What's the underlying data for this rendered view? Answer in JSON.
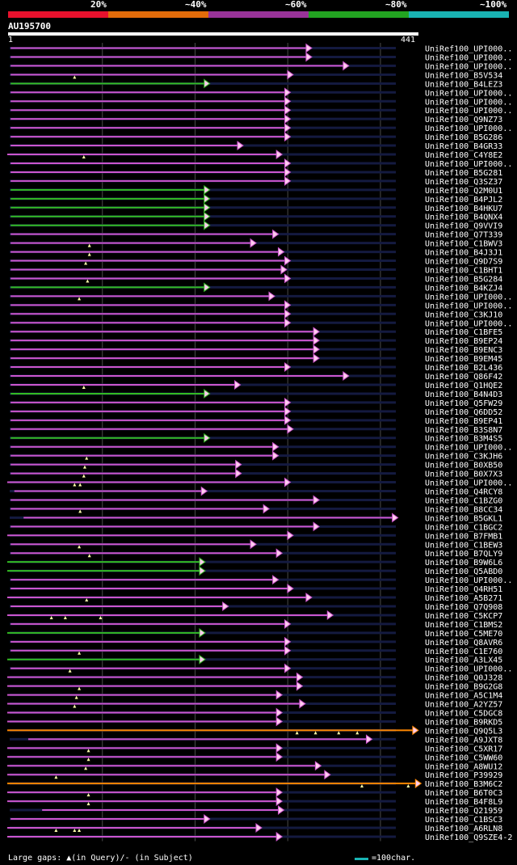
{
  "legend": {
    "items": [
      {
        "label": "20%",
        "color": "#e8112d"
      },
      {
        "label": "~40%",
        "color": "#e36c0a"
      },
      {
        "label": "~60%",
        "color": "#993399"
      },
      {
        "label": "~80%",
        "color": "#22a321"
      },
      {
        "label": "~100%",
        "color": "#19b3b3"
      }
    ]
  },
  "query": {
    "name": "AU195700",
    "start": "1",
    "end": "441",
    "length": 441
  },
  "colors": {
    "track": "#141a40",
    "grid": "#4a4a4a",
    "magenta": "#cc55cc",
    "green": "#33bb22",
    "orange": "#ff8800",
    "gap": "#ffffaa",
    "arrow_fill": "#ffccee",
    "text": "#ffffff",
    "scale": "#19b3b3"
  },
  "footer": {
    "large_gaps_text": "Large gaps: ▲(in Query)/- (in Subject)",
    "scale_text": "=100char."
  },
  "hits": [
    {
      "label": "UniRef100_UPI000..",
      "start": 1,
      "end": 325,
      "color": "m",
      "gaps": []
    },
    {
      "label": "UniRef100_UPI000..",
      "start": 1,
      "end": 325,
      "color": "m",
      "gaps": []
    },
    {
      "label": "UniRef100_UPI000..",
      "start": 1,
      "end": 365,
      "color": "m",
      "gaps": []
    },
    {
      "label": "UniRef100_B5V534",
      "start": 1,
      "end": 305,
      "color": "m",
      "gaps": [
        70
      ]
    },
    {
      "label": "UniRef100_B4LEZ3",
      "start": 1,
      "end": 215,
      "color": "g",
      "gaps": []
    },
    {
      "label": "UniRef100_UPI000..",
      "start": 1,
      "end": 302,
      "color": "m",
      "gaps": []
    },
    {
      "label": "UniRef100_UPI000..",
      "start": 1,
      "end": 302,
      "color": "m",
      "gaps": []
    },
    {
      "label": "UniRef100_UPI000..",
      "start": 1,
      "end": 302,
      "color": "m",
      "gaps": []
    },
    {
      "label": "UniRef100_Q9NZ73",
      "start": 1,
      "end": 302,
      "color": "m",
      "gaps": []
    },
    {
      "label": "UniRef100_UPI000..",
      "start": 1,
      "end": 302,
      "color": "m",
      "gaps": []
    },
    {
      "label": "UniRef100_B5G286",
      "start": 1,
      "end": 302,
      "color": "m",
      "gaps": []
    },
    {
      "label": "UniRef100_B4GR33",
      "start": 1,
      "end": 251,
      "color": "m",
      "gaps": []
    },
    {
      "label": "UniRef100_C4Y8E2",
      "start": -3,
      "end": 293,
      "color": "m",
      "gaps": [
        80
      ]
    },
    {
      "label": "UniRef100_UPI000..",
      "start": 1,
      "end": 302,
      "color": "m",
      "gaps": []
    },
    {
      "label": "UniRef100_B5G281",
      "start": 1,
      "end": 302,
      "color": "m",
      "gaps": []
    },
    {
      "label": "UniRef100_Q3SZ37",
      "start": 1,
      "end": 302,
      "color": "m",
      "gaps": []
    },
    {
      "label": "UniRef100_Q2M0U1",
      "start": 1,
      "end": 215,
      "color": "g",
      "gaps": []
    },
    {
      "label": "UniRef100_B4PJL2",
      "start": 1,
      "end": 215,
      "color": "g",
      "gaps": []
    },
    {
      "label": "UniRef100_B4HKU7",
      "start": 1,
      "end": 215,
      "color": "g",
      "gaps": []
    },
    {
      "label": "UniRef100_B4QNX4",
      "start": 1,
      "end": 215,
      "color": "g",
      "gaps": []
    },
    {
      "label": "UniRef100_Q9VVI9",
      "start": 1,
      "end": 215,
      "color": "g",
      "gaps": []
    },
    {
      "label": "UniRef100_Q7T339",
      "start": 1,
      "end": 289,
      "color": "m",
      "gaps": []
    },
    {
      "label": "UniRef100_C1BWV3",
      "start": 1,
      "end": 265,
      "color": "m",
      "gaps": [
        86
      ]
    },
    {
      "label": "UniRef100_B4J3J1",
      "start": 1,
      "end": 295,
      "color": "m",
      "gaps": [
        86
      ]
    },
    {
      "label": "UniRef100_Q9D7S9",
      "start": 1,
      "end": 302,
      "color": "m",
      "gaps": [
        82
      ]
    },
    {
      "label": "UniRef100_C1BHT1",
      "start": 1,
      "end": 298,
      "color": "m",
      "gaps": []
    },
    {
      "label": "UniRef100_B5G284",
      "start": 1,
      "end": 302,
      "color": "m",
      "gaps": [
        84
      ]
    },
    {
      "label": "UniRef100_B4KZJ4",
      "start": 1,
      "end": 215,
      "color": "g",
      "gaps": []
    },
    {
      "label": "UniRef100_UPI000..",
      "start": 1,
      "end": 285,
      "color": "m",
      "gaps": [
        75
      ]
    },
    {
      "label": "UniRef100_UPI000..",
      "start": 1,
      "end": 302,
      "color": "m",
      "gaps": []
    },
    {
      "label": "UniRef100_C3KJ10",
      "start": 1,
      "end": 302,
      "color": "m",
      "gaps": []
    },
    {
      "label": "UniRef100_UPI000..",
      "start": 1,
      "end": 302,
      "color": "m",
      "gaps": []
    },
    {
      "label": "UniRef100_C1BFE5",
      "start": 1,
      "end": 333,
      "color": "m",
      "gaps": []
    },
    {
      "label": "UniRef100_B9EP24",
      "start": 1,
      "end": 333,
      "color": "m",
      "gaps": []
    },
    {
      "label": "UniRef100_B9ENC3",
      "start": 1,
      "end": 333,
      "color": "m",
      "gaps": []
    },
    {
      "label": "UniRef100_B9EM45",
      "start": 1,
      "end": 333,
      "color": "m",
      "gaps": []
    },
    {
      "label": "UniRef100_B2L436",
      "start": 1,
      "end": 302,
      "color": "m",
      "gaps": []
    },
    {
      "label": "UniRef100_Q86F42",
      "start": 1,
      "end": 365,
      "color": "m",
      "gaps": []
    },
    {
      "label": "UniRef100_Q1HQE2",
      "start": 1,
      "end": 248,
      "color": "m",
      "gaps": [
        80
      ]
    },
    {
      "label": "UniRef100_B4N4D3",
      "start": 1,
      "end": 215,
      "color": "g",
      "gaps": []
    },
    {
      "label": "UniRef100_Q5FW29",
      "start": 1,
      "end": 302,
      "color": "m",
      "gaps": []
    },
    {
      "label": "UniRef100_Q6DD52",
      "start": 1,
      "end": 302,
      "color": "m",
      "gaps": []
    },
    {
      "label": "UniRef100_B9EP41",
      "start": 1,
      "end": 302,
      "color": "m",
      "gaps": []
    },
    {
      "label": "UniRef100_B3S8N7",
      "start": 1,
      "end": 305,
      "color": "m",
      "gaps": []
    },
    {
      "label": "UniRef100_B3M4S5",
      "start": 1,
      "end": 215,
      "color": "g",
      "gaps": []
    },
    {
      "label": "UniRef100_UPI000..",
      "start": 1,
      "end": 289,
      "color": "m",
      "gaps": []
    },
    {
      "label": "UniRef100_C3KJH6",
      "start": 1,
      "end": 289,
      "color": "m",
      "gaps": [
        83
      ]
    },
    {
      "label": "UniRef100_B0XB50",
      "start": 1,
      "end": 249,
      "color": "m",
      "gaps": [
        81
      ]
    },
    {
      "label": "UniRef100_B0X7X3",
      "start": 1,
      "end": 249,
      "color": "m",
      "gaps": [
        80
      ]
    },
    {
      "label": "UniRef100_UPI000..",
      "start": -3,
      "end": 302,
      "color": "m",
      "gaps": [
        70,
        76
      ]
    },
    {
      "label": "UniRef100_Q4RCY8",
      "start": 5,
      "end": 212,
      "color": "m",
      "gaps": []
    },
    {
      "label": "UniRef100_C1BZG0",
      "start": 1,
      "end": 333,
      "color": "m",
      "gaps": []
    },
    {
      "label": "UniRef100_B8CC34",
      "start": 1,
      "end": 279,
      "color": "m",
      "gaps": [
        76
      ]
    },
    {
      "label": "UniRef100_B5GKL1",
      "start": 15,
      "end": 418,
      "color": "m",
      "gaps": []
    },
    {
      "label": "UniRef100_C1BGC2",
      "start": 1,
      "end": 333,
      "color": "m",
      "gaps": []
    },
    {
      "label": "UniRef100_B7FMB1",
      "start": -3,
      "end": 305,
      "color": "m",
      "gaps": []
    },
    {
      "label": "UniRef100_C1BEW3",
      "start": 1,
      "end": 265,
      "color": "m",
      "gaps": [
        75
      ]
    },
    {
      "label": "UniRef100_B7QLY9",
      "start": 1,
      "end": 293,
      "color": "m",
      "gaps": [
        86
      ]
    },
    {
      "label": "UniRef100_B9W6L6",
      "start": -3,
      "end": 210,
      "color": "g",
      "gaps": []
    },
    {
      "label": "UniRef100_Q5ABD0",
      "start": -3,
      "end": 210,
      "color": "g",
      "gaps": []
    },
    {
      "label": "UniRef100_UPI000..",
      "start": 1,
      "end": 289,
      "color": "m",
      "gaps": []
    },
    {
      "label": "UniRef100_Q4RH51",
      "start": 1,
      "end": 305,
      "color": "m",
      "gaps": []
    },
    {
      "label": "UniRef100_A5B271",
      "start": -3,
      "end": 325,
      "color": "m",
      "gaps": [
        83
      ]
    },
    {
      "label": "UniRef100_Q7Q908",
      "start": 1,
      "end": 235,
      "color": "m",
      "gaps": []
    },
    {
      "label": "UniRef100_C5KCP7",
      "start": -3,
      "end": 348,
      "color": "m",
      "gaps": [
        45,
        60,
        98
      ]
    },
    {
      "label": "UniRef100_C1BMS2",
      "start": 1,
      "end": 302,
      "color": "m",
      "gaps": []
    },
    {
      "label": "UniRef100_C5ME70",
      "start": -3,
      "end": 210,
      "color": "g",
      "gaps": []
    },
    {
      "label": "UniRef100_Q8AVR6",
      "start": 1,
      "end": 302,
      "color": "m",
      "gaps": []
    },
    {
      "label": "UniRef100_C1E760",
      "start": 1,
      "end": 302,
      "color": "m",
      "gaps": [
        75
      ]
    },
    {
      "label": "UniRef100_A3LX45",
      "start": -3,
      "end": 210,
      "color": "g",
      "gaps": []
    },
    {
      "label": "UniRef100_UPI000..",
      "start": 1,
      "end": 302,
      "color": "m",
      "gaps": [
        65
      ]
    },
    {
      "label": "UniRef100_Q0J328",
      "start": -3,
      "end": 315,
      "color": "m",
      "gaps": []
    },
    {
      "label": "UniRef100_B9G2G8",
      "start": -3,
      "end": 315,
      "color": "m",
      "gaps": [
        75
      ]
    },
    {
      "label": "UniRef100_A5C1M4",
      "start": -3,
      "end": 293,
      "color": "m",
      "gaps": [
        72
      ]
    },
    {
      "label": "UniRef100_A2YZ57",
      "start": -3,
      "end": 318,
      "color": "m",
      "gaps": [
        70
      ]
    },
    {
      "label": "UniRef100_C5DGC8",
      "start": -3,
      "end": 293,
      "color": "m",
      "gaps": []
    },
    {
      "label": "UniRef100_B9RKD5",
      "start": -3,
      "end": 293,
      "color": "m",
      "gaps": []
    },
    {
      "label": "UniRef100_Q9Q5L3",
      "start": -3,
      "end": 440,
      "color": "o",
      "gaps": [
        310,
        330,
        355,
        375
      ]
    },
    {
      "label": "UniRef100_A9JXT8",
      "start": 20,
      "end": 390,
      "color": "m",
      "gaps": []
    },
    {
      "label": "UniRef100_C5XR17",
      "start": -3,
      "end": 293,
      "color": "m",
      "gaps": [
        85
      ]
    },
    {
      "label": "UniRef100_C5WW60",
      "start": -3,
      "end": 293,
      "color": "m",
      "gaps": [
        85
      ]
    },
    {
      "label": "UniRef100_A8WU12",
      "start": -3,
      "end": 335,
      "color": "m",
      "gaps": [
        82
      ]
    },
    {
      "label": "UniRef100_P39929",
      "start": -3,
      "end": 345,
      "color": "m",
      "gaps": [
        50
      ]
    },
    {
      "label": "UniRef100_B3M6C2",
      "start": -3,
      "end": 443,
      "color": "o",
      "gaps": [
        380,
        430
      ]
    },
    {
      "label": "UniRef100_B6T0C3",
      "start": -3,
      "end": 293,
      "color": "m",
      "gaps": [
        85
      ]
    },
    {
      "label": "UniRef100_B4F8L9",
      "start": -3,
      "end": 293,
      "color": "m",
      "gaps": [
        85
      ]
    },
    {
      "label": "UniRef100_Q21959",
      "start": 35,
      "end": 295,
      "color": "m",
      "gaps": []
    },
    {
      "label": "UniRef100_C1BSC3",
      "start": 1,
      "end": 215,
      "color": "m",
      "gaps": []
    },
    {
      "label": "UniRef100_A6RLN8",
      "start": -3,
      "end": 271,
      "color": "m",
      "gaps": [
        50,
        70,
        75
      ]
    },
    {
      "label": "UniRef100_Q9SZE4-2",
      "start": -3,
      "end": 293,
      "color": "m",
      "gaps": []
    }
  ]
}
